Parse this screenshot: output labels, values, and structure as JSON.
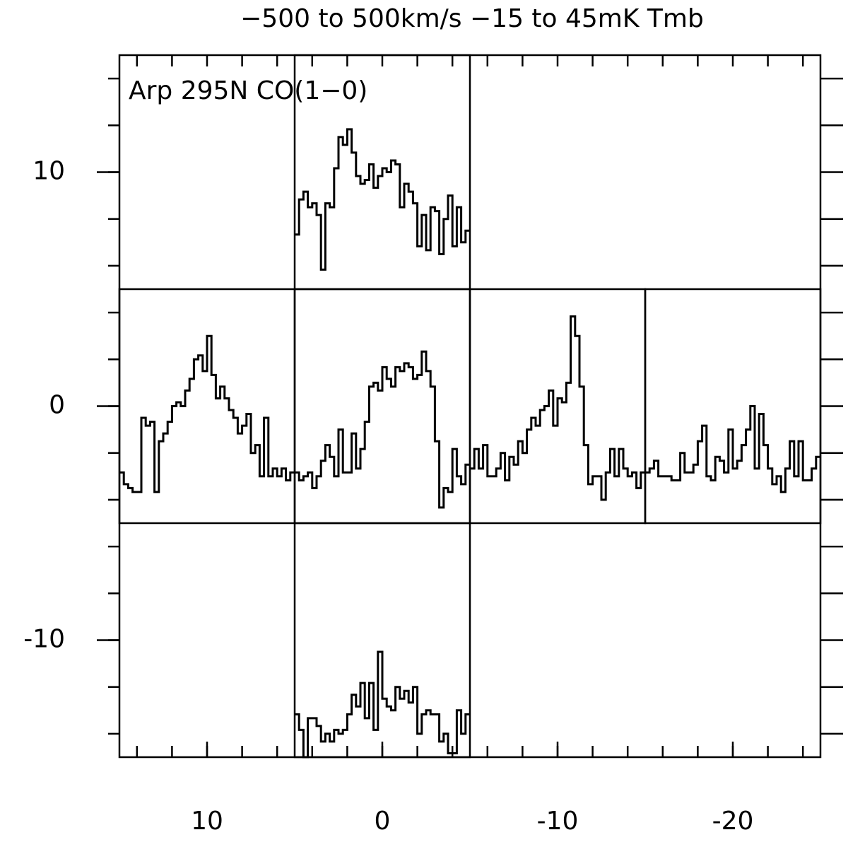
{
  "chart_data": {
    "type": "spectral-map",
    "title": "−500 to 500km/s −15 to 45mK Tmb",
    "annotation": "Arp 295N CO(1−0)",
    "xlim": [
      15,
      -25
    ],
    "ylim": [
      -15,
      15
    ],
    "xticks": [
      10,
      0,
      -10,
      -20
    ],
    "yticks": [
      -10,
      0,
      10
    ],
    "minor_xticks": [
      14,
      12,
      10,
      8,
      6,
      4,
      2,
      0,
      -2,
      -4,
      -6,
      -8,
      -10,
      -12,
      -14,
      -16,
      -18,
      -20,
      -22,
      -24
    ],
    "minor_yticks": [
      -14,
      -12,
      -10,
      -8,
      -6,
      -4,
      -2,
      0,
      2,
      4,
      6,
      8,
      10,
      12,
      14
    ],
    "panel_size": 10,
    "vlim": [
      -500,
      500
    ],
    "tlim": [
      -15,
      45
    ],
    "color": "#000000",
    "velocity": [
      -487.5,
      -462.5,
      -437.5,
      -412.5,
      -387.5,
      -362.5,
      -337.5,
      -312.5,
      -287.5,
      -262.5,
      -237.5,
      -212.5,
      -187.5,
      -162.5,
      -137.5,
      -112.5,
      -87.5,
      -62.5,
      -37.5,
      -12.5,
      12.5,
      37.5,
      62.5,
      87.5,
      112.5,
      137.5,
      162.5,
      187.5,
      212.5,
      237.5,
      262.5,
      287.5,
      312.5,
      337.5,
      362.5,
      387.5,
      412.5,
      437.5,
      462.5,
      487.5
    ],
    "spectra": [
      {
        "offset": [
          0,
          10
        ],
        "values": [
          -1,
          8,
          10,
          6,
          7,
          4,
          -10,
          7,
          6,
          16,
          24,
          22,
          26,
          20,
          14,
          12,
          13,
          17,
          11,
          14,
          16,
          15,
          18,
          17,
          6,
          12,
          10,
          7,
          -4,
          4,
          -5,
          6,
          5,
          -6,
          3,
          9,
          -4,
          6,
          -3,
          0
        ]
      },
      {
        "offset": [
          10,
          0
        ],
        "values": [
          -2,
          -5,
          -6,
          -7,
          -7,
          12,
          10,
          11,
          -7,
          6,
          8,
          11,
          15,
          16,
          15,
          19,
          22,
          27,
          28,
          24,
          33,
          23,
          17,
          20,
          17,
          14,
          12,
          8,
          10,
          13,
          3,
          5,
          -3,
          12,
          -3,
          -1,
          -3,
          -1,
          -4,
          -2
        ]
      },
      {
        "offset": [
          0,
          0
        ],
        "values": [
          -2,
          -4,
          -3,
          -2,
          -6,
          -3,
          1,
          5,
          2,
          -3,
          9,
          -2,
          -2,
          8,
          -1,
          4,
          11,
          20,
          21,
          19,
          25,
          22,
          20,
          25,
          24,
          26,
          25,
          22,
          23,
          29,
          24,
          20,
          6,
          -11,
          -6,
          -7,
          4,
          -3,
          -5,
          0
        ]
      },
      {
        "offset": [
          -10,
          0
        ],
        "values": [
          -1,
          4,
          -1,
          5,
          -3,
          -3,
          -1,
          3,
          -4,
          2,
          0,
          6,
          3,
          9,
          12,
          10,
          14,
          15,
          19,
          10,
          17,
          16,
          21,
          38,
          33,
          20,
          5,
          -5,
          -3,
          -3,
          -9,
          -2,
          4,
          -3,
          4,
          -1,
          -3,
          -2,
          -6,
          -2
        ]
      },
      {
        "offset": [
          -20,
          0
        ],
        "values": [
          -2,
          -1,
          1,
          -3,
          -3,
          -3,
          -4,
          -4,
          3,
          -2,
          -2,
          0,
          6,
          10,
          -3,
          -4,
          2,
          1,
          -2,
          9,
          -1,
          1,
          5,
          9,
          15,
          -1,
          13,
          5,
          -1,
          -5,
          -3,
          -7,
          -1,
          6,
          -3,
          6,
          -4,
          -4,
          -1,
          2
        ]
      },
      {
        "offset": [
          0,
          -10
        ],
        "values": [
          -4,
          -8,
          -15,
          -5,
          -5,
          -7,
          -11,
          -9,
          -11,
          -8,
          -9,
          -8,
          -4,
          1,
          -2,
          4,
          -5,
          4,
          -8,
          12,
          0,
          -2,
          -3,
          3,
          0,
          2,
          -1,
          3,
          -9,
          -4,
          -3,
          -4,
          -4,
          -11,
          -9,
          -14,
          -14,
          -3,
          -9,
          -4
        ]
      }
    ]
  }
}
